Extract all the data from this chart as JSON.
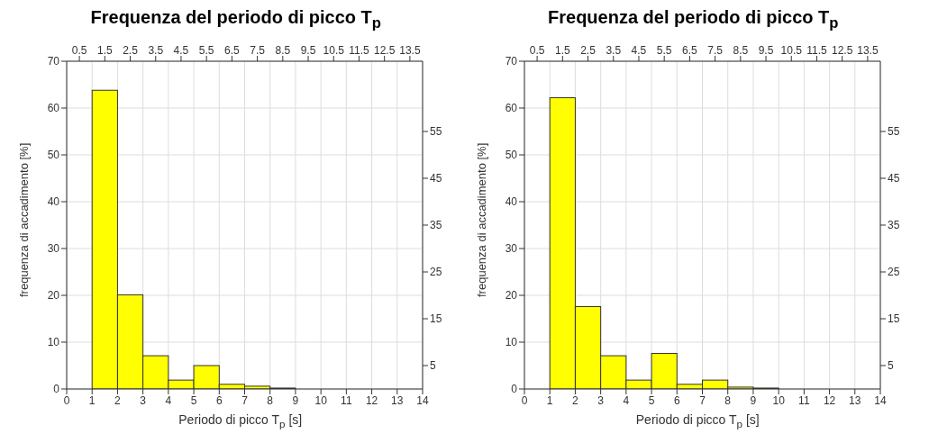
{
  "chart_data": [
    {
      "type": "histogram",
      "title": "Frequenza del periodo di picco T$_{p}$",
      "xlabel": "Periodo di picco  T$_{p}$ [s]",
      "ylabel": "frequenza di accadimento [%]",
      "bins": [
        0,
        1,
        2,
        3,
        4,
        5,
        6,
        7,
        8,
        9,
        10,
        11,
        12,
        13,
        14
      ],
      "values": [
        0,
        63.8,
        20.1,
        7.1,
        1.9,
        5.0,
        1.0,
        0.6,
        0.2,
        0,
        0,
        0,
        0,
        0
      ],
      "color": "#ffff00",
      "grid": true,
      "xlim": [
        0,
        14
      ],
      "xticks": [
        0,
        1,
        2,
        3,
        4,
        5,
        6,
        7,
        8,
        9,
        10,
        11,
        12,
        13,
        14
      ],
      "x2lim": [
        0,
        14
      ],
      "x2ticks": [
        0.5,
        1.5,
        2.5,
        3.5,
        4.5,
        5.5,
        6.5,
        7.5,
        8.5,
        9.5,
        10.5,
        11.5,
        12.5,
        13.5
      ],
      "ylim": [
        0,
        70
      ],
      "yticks": [
        0,
        10,
        20,
        30,
        40,
        50,
        60,
        70
      ],
      "y2lim": [
        0,
        70
      ],
      "y2ticks": [
        5,
        15,
        25,
        35,
        45,
        55
      ]
    },
    {
      "type": "histogram",
      "title": "Frequenza del periodo di picco T$_{p}$",
      "xlabel": "Periodo di picco  T$_{p}$ [s]",
      "ylabel": "frequenza di accadimento [%]",
      "bins": [
        0,
        1,
        2,
        3,
        4,
        5,
        6,
        7,
        8,
        9,
        10,
        11,
        12,
        13,
        14
      ],
      "values": [
        0,
        62.2,
        17.6,
        7.1,
        1.9,
        7.6,
        1.0,
        1.9,
        0.4,
        0.2,
        0,
        0,
        0,
        0
      ],
      "color": "#ffff00",
      "grid": true,
      "xlim": [
        0,
        14
      ],
      "xticks": [
        0,
        1,
        2,
        3,
        4,
        5,
        6,
        7,
        8,
        9,
        10,
        11,
        12,
        13,
        14
      ],
      "x2lim": [
        0,
        14
      ],
      "x2ticks": [
        0.5,
        1.5,
        2.5,
        3.5,
        4.5,
        5.5,
        6.5,
        7.5,
        8.5,
        9.5,
        10.5,
        11.5,
        12.5,
        13.5
      ],
      "ylim": [
        0,
        70
      ],
      "yticks": [
        0,
        10,
        20,
        30,
        40,
        50,
        60,
        70
      ],
      "y2lim": [
        0,
        70
      ],
      "y2ticks": [
        5,
        15,
        25,
        35,
        45,
        55
      ]
    }
  ]
}
